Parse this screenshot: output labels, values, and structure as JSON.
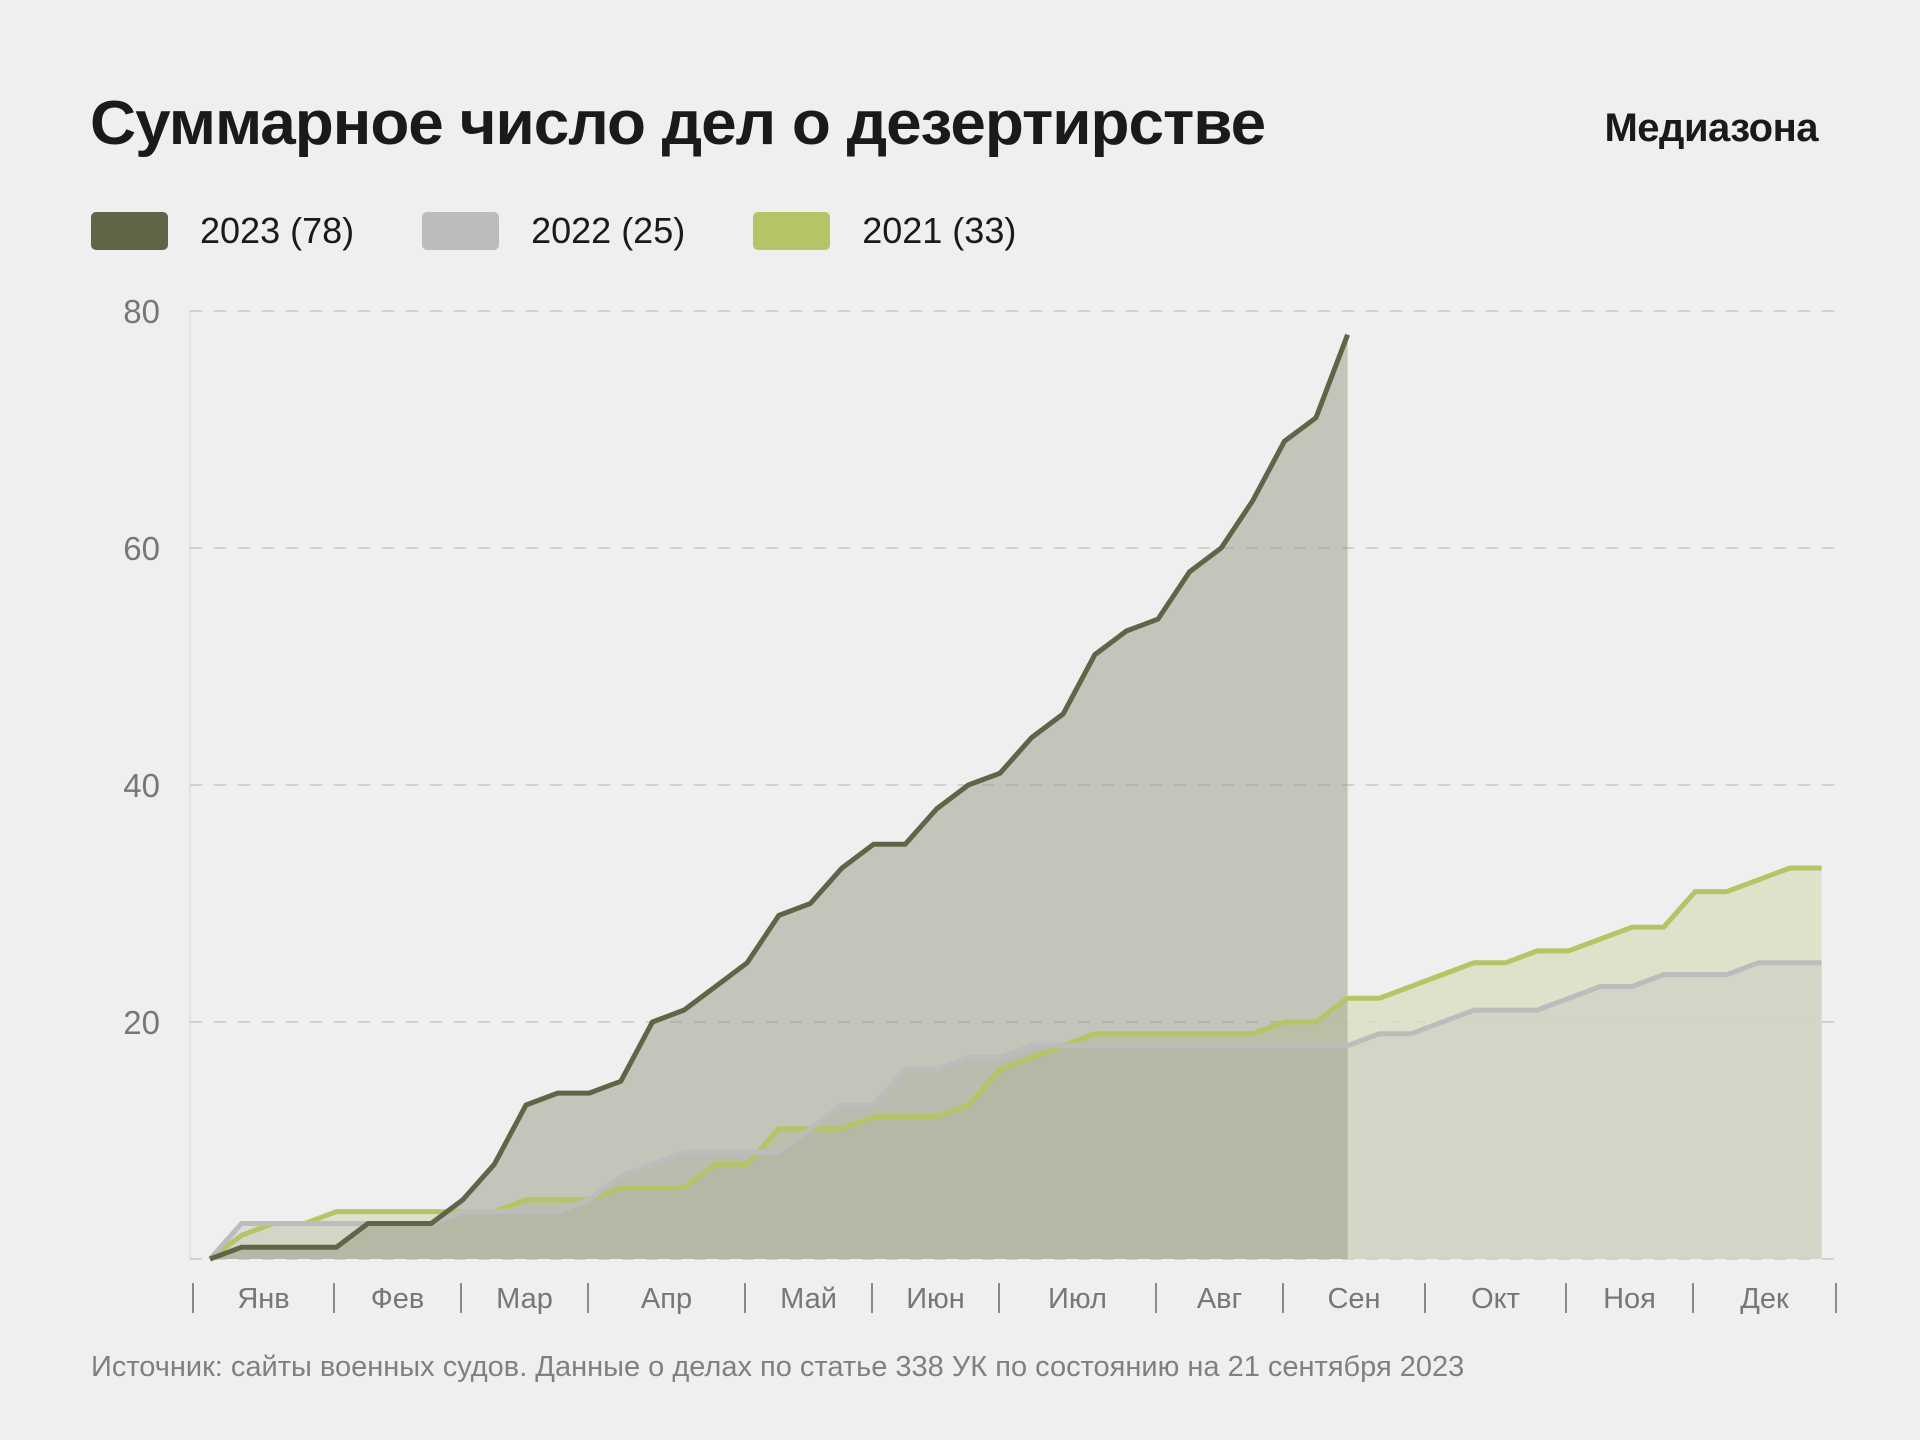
{
  "header": {
    "title": "Суммарное число дел о дезертирстве",
    "brand": "Медиазона"
  },
  "footer": {
    "source": "Источник: сайты военных судов. Данные о делах по статье 338 УК по состоянию на 21 сентября 2023"
  },
  "colors": {
    "background": "#efefef",
    "series_2023_line": "#5f6547",
    "series_2023_fill": "#c3c4b9",
    "series_2022_line": "#bcbcbc",
    "series_2021_line": "#b5c464",
    "series_2021_fill": "#dcdfc3"
  },
  "chart_data": {
    "type": "area",
    "title": "Суммарное число дел о дезертирстве",
    "xlabel": "",
    "ylabel": "",
    "x_unit": "week of year",
    "ylim": [
      0,
      80
    ],
    "yticks": [
      20,
      40,
      60,
      80
    ],
    "grid": true,
    "legend_position": "top-left",
    "month_labels": [
      "Янв",
      "Фев",
      "Мар",
      "Апр",
      "Май",
      "Июн",
      "Июл",
      "Авг",
      "Сен",
      "Окт",
      "Ноя",
      "Дек"
    ],
    "legend": [
      {
        "label": "2023 (78)",
        "color": "#5f6547"
      },
      {
        "label": "2022 (25)",
        "color": "#bcbcbc"
      },
      {
        "label": "2021 (33)",
        "color": "#b5c464"
      }
    ],
    "series": [
      {
        "name": "2021",
        "total": 33,
        "values": [
          0,
          2,
          3,
          3,
          4,
          4,
          4,
          4,
          4,
          4,
          5,
          5,
          5,
          6,
          6,
          6,
          8,
          8,
          11,
          11,
          11,
          12,
          12,
          12,
          13,
          16,
          17,
          18,
          19,
          19,
          19,
          19,
          19,
          19,
          20,
          20,
          22,
          22,
          23,
          24,
          25,
          25,
          26,
          26,
          27,
          28,
          28,
          31,
          31,
          32,
          33,
          33
        ]
      },
      {
        "name": "2022",
        "total": 25,
        "values": [
          0,
          3,
          3,
          3,
          3,
          3,
          3,
          3,
          4,
          4,
          4,
          4,
          5,
          7,
          8,
          9,
          9,
          9,
          9,
          11,
          13,
          13,
          16,
          16,
          17,
          17,
          18,
          18,
          18,
          18,
          18,
          18,
          18,
          18,
          18,
          18,
          18,
          19,
          19,
          20,
          21,
          21,
          21,
          22,
          23,
          23,
          24,
          24,
          24,
          25,
          25,
          25
        ]
      },
      {
        "name": "2023",
        "total": 78,
        "values": [
          0,
          1,
          1,
          1,
          1,
          3,
          3,
          3,
          5,
          8,
          13,
          14,
          14,
          15,
          20,
          21,
          23,
          25,
          29,
          30,
          33,
          35,
          35,
          38,
          40,
          41,
          44,
          46,
          51,
          53,
          54,
          58,
          60,
          64,
          69,
          71,
          78
        ]
      }
    ]
  }
}
